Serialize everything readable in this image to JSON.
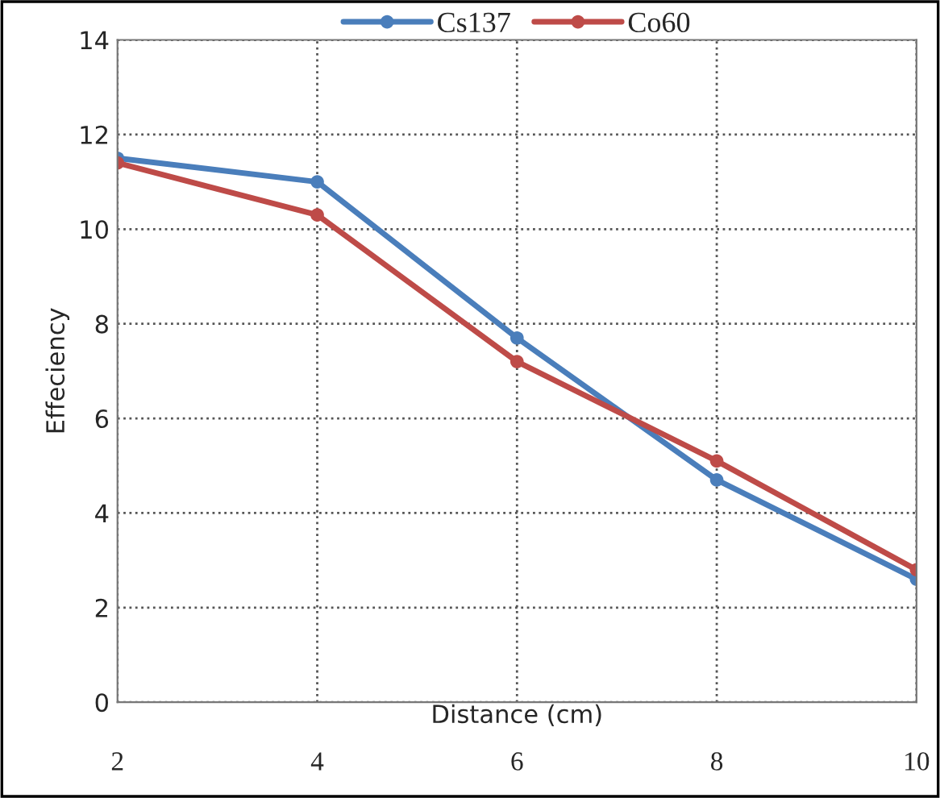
{
  "chart_data": {
    "type": "line",
    "xlabel": "Distance (cm)",
    "ylabel": "Effeciency",
    "x": [
      2,
      4,
      6,
      8,
      10
    ],
    "series": [
      {
        "name": "Cs137",
        "color": "#4a7ebb",
        "values": [
          11.5,
          11.0,
          7.7,
          4.7,
          2.6
        ]
      },
      {
        "name": "Co60",
        "color": "#be4b48",
        "values": [
          11.4,
          10.3,
          7.2,
          5.1,
          2.8
        ]
      }
    ],
    "xlim": [
      2,
      10
    ],
    "xticks": [
      2,
      4,
      6,
      8,
      10
    ],
    "ylim": [
      0,
      14
    ],
    "yticks": [
      0,
      2,
      4,
      6,
      8,
      10,
      12,
      14
    ],
    "grid": true,
    "legend": "top",
    "marker": "circle",
    "line_style": "solid"
  }
}
